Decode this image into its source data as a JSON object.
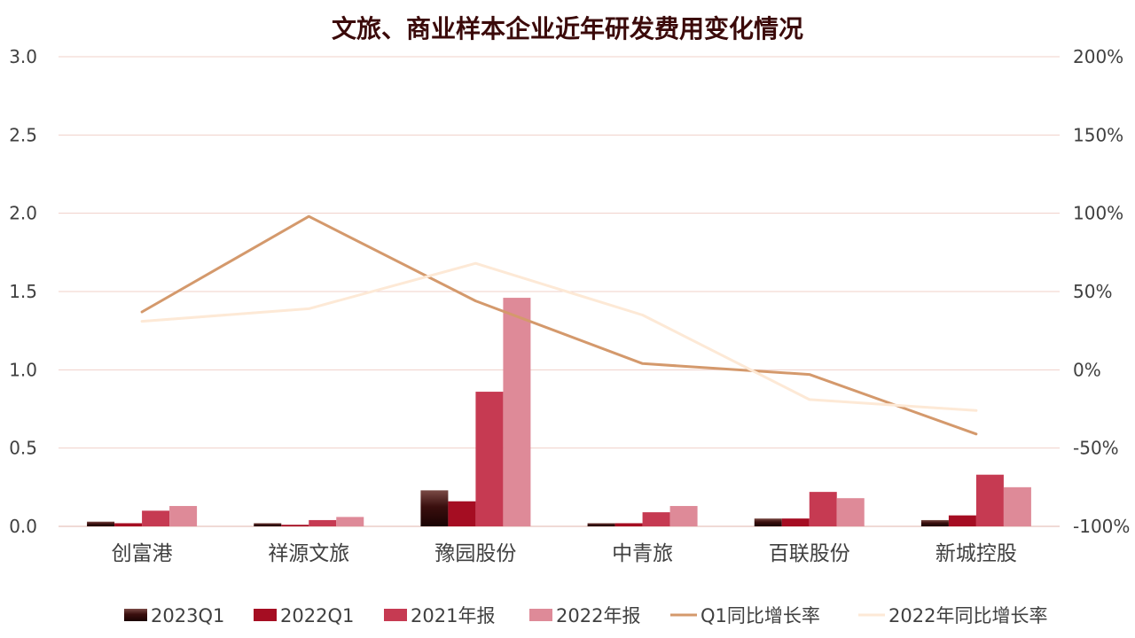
{
  "chart_data": {
    "type": "bar",
    "title": "文旅、商业样本企业近年研发费用变化情况",
    "categories": [
      "创富港",
      "祥源文旅",
      "豫园股份",
      "中青旅",
      "百联股份",
      "新城控股"
    ],
    "y_left": {
      "ylim": [
        0,
        3.0
      ],
      "ticks": [
        "0.0",
        "0.5",
        "1.0",
        "1.5",
        "2.0",
        "2.5",
        "3.0"
      ]
    },
    "y_right": {
      "ylim": [
        -100,
        200
      ],
      "ticks": [
        "-100%",
        "-50%",
        "0%",
        "50%",
        "100%",
        "150%",
        "200%"
      ]
    },
    "bar_series": [
      {
        "name": "2023Q1",
        "values": [
          0.03,
          0.02,
          0.23,
          0.02,
          0.05,
          0.04
        ],
        "color": "#2a0a0a"
      },
      {
        "name": "2022Q1",
        "values": [
          0.02,
          0.01,
          0.16,
          0.02,
          0.05,
          0.07
        ],
        "color": "#a50d22"
      },
      {
        "name": "2021年报",
        "values": [
          0.1,
          0.04,
          0.86,
          0.09,
          0.22,
          0.33
        ],
        "color": "#c63a52"
      },
      {
        "name": "2022年报",
        "values": [
          0.13,
          0.06,
          1.46,
          0.13,
          0.18,
          0.25
        ],
        "color": "#de8a98"
      }
    ],
    "line_series": [
      {
        "name": "Q1同比增长率",
        "values": [
          37,
          98,
          44,
          4,
          -3,
          -41
        ],
        "color": "#d4996c"
      },
      {
        "name": "2022年同比增长率",
        "values": [
          31,
          39,
          68,
          35,
          -19,
          -26
        ],
        "color": "#fde9d6"
      }
    ],
    "legend": "bottom",
    "grid": true
  }
}
